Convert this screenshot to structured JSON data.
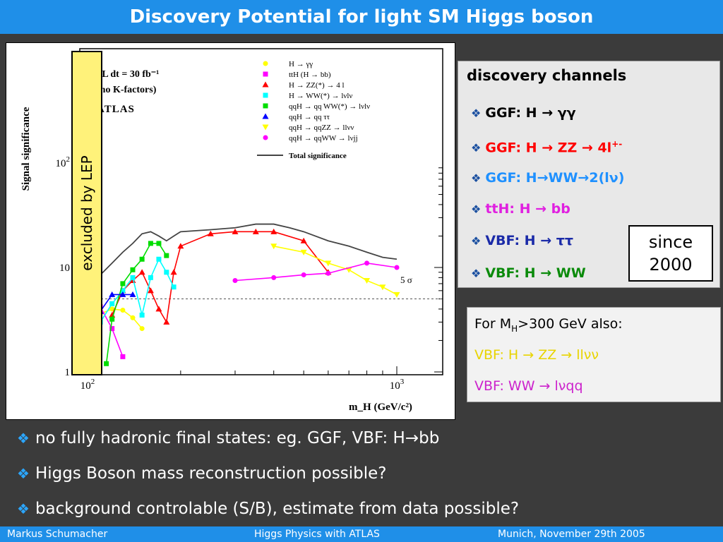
{
  "title": "Discovery Potential for light SM Higgs boson",
  "chart_data": {
    "type": "line",
    "title": "",
    "xlabel": "m_H (GeV/c²)",
    "ylabel": "Signal significance",
    "xscale": "log",
    "yscale": "log",
    "xlim": [
      100,
      1000
    ],
    "ylim": [
      1,
      100
    ],
    "x_tick_labels": [
      "10 2",
      "10 3"
    ],
    "y_tick_labels": [
      "1",
      "10",
      "10 2"
    ],
    "annotations": [
      "∫ L dt = 30 fb⁻¹",
      "(no K-factors)",
      "ATLAS",
      "5 σ"
    ],
    "threshold": {
      "label": "5 σ",
      "y": 5
    },
    "legend_position": "top-right",
    "series": [
      {
        "name": "H → γγ",
        "color": "#ffff00",
        "marker": "circle",
        "x": [
          100,
          110,
          120,
          130,
          140,
          150
        ],
        "y": [
          2.7,
          3.6,
          4.0,
          3.9,
          3.3,
          2.6
        ]
      },
      {
        "name": "ttH (H → bb)",
        "color": "#ff00ff",
        "marker": "square",
        "x": [
          100,
          110,
          120,
          130
        ],
        "y": [
          5.0,
          4.2,
          2.6,
          1.4
        ]
      },
      {
        "name": "H → ZZ(*) → 4 l",
        "color": "#ff0000",
        "marker": "triangle",
        "x": [
          120,
          130,
          140,
          150,
          160,
          170,
          180,
          190,
          200,
          250,
          300,
          350,
          400,
          500,
          600
        ],
        "y": [
          3.5,
          6.0,
          7.5,
          9.0,
          6.0,
          4.0,
          3.0,
          9.0,
          16.0,
          21.0,
          22.0,
          22.0,
          22.0,
          18.0,
          9.0
        ]
      },
      {
        "name": "H → WW(*) → lνlν",
        "color": "#00ffff",
        "marker": "square",
        "x": [
          110,
          120,
          130,
          140,
          150,
          160,
          170,
          180,
          190
        ],
        "y": [
          3.0,
          4.5,
          6.0,
          8.0,
          3.5,
          8.0,
          12.0,
          9.0,
          6.5
        ]
      },
      {
        "name": "qqH → qq WW(*) → lνlν",
        "color": "#00dd00",
        "marker": "square",
        "x": [
          115,
          120,
          130,
          140,
          150,
          160,
          170,
          180
        ],
        "y": [
          1.2,
          3.2,
          7.0,
          9.5,
          12.0,
          17.0,
          17.0,
          13.0
        ]
      },
      {
        "name": "qqH → qq ττ",
        "color": "#0000ff",
        "marker": "triangle",
        "x": [
          110,
          120,
          130,
          140
        ],
        "y": [
          3.8,
          5.5,
          5.5,
          5.5
        ]
      },
      {
        "name": "qqH → qqZZ → llνν",
        "color": "#ffff00",
        "marker": "triangle-down",
        "x": [
          400,
          500,
          600,
          700,
          800,
          900,
          1000
        ],
        "y": [
          16.0,
          14.0,
          11.0,
          9.5,
          7.5,
          6.5,
          5.5
        ]
      },
      {
        "name": "qqH → qqWW → lνjj",
        "color": "#ff00ff",
        "marker": "circle",
        "x": [
          300,
          400,
          500,
          600,
          800,
          1000
        ],
        "y": [
          7.5,
          8.0,
          8.5,
          8.8,
          11.0,
          10.0
        ]
      },
      {
        "name": "Total significance",
        "color": "#444444",
        "marker": "none",
        "x": [
          100,
          110,
          120,
          130,
          140,
          150,
          160,
          170,
          180,
          190,
          200,
          250,
          300,
          350,
          400,
          450,
          500,
          600,
          700,
          800,
          900,
          1000
        ],
        "y": [
          6.0,
          8.5,
          11.0,
          14.0,
          17.0,
          21.0,
          22.0,
          20.0,
          18.0,
          20.0,
          22.0,
          23.0,
          24.0,
          26.0,
          26.0,
          24.0,
          22.0,
          18.0,
          16.0,
          14.0,
          12.5,
          12.0
        ]
      }
    ]
  },
  "lep_label": "excluded by LEP",
  "channels": {
    "heading": "discovery channels",
    "items": [
      {
        "text": "GGF: H → γγ",
        "color": "#000000"
      },
      {
        "text": "GGF: H → ZZ → 4l",
        "sup": "+-",
        "color": "#ff0000"
      },
      {
        "text": "GGF: H→WW→2(lν)",
        "color": "#1e90ff"
      },
      {
        "text": "ttH:  H → bb",
        "color": "#e020e0"
      },
      {
        "text": "VBF: H → ττ",
        "color": "#1a2aa8"
      },
      {
        "text": "VBF: H → WW",
        "color": "#0a8a0a"
      }
    ]
  },
  "since": {
    "line1": "since",
    "line2": "2000"
  },
  "also": {
    "heading_pre": "For M",
    "heading_sub": "H",
    "heading_post": ">300 GeV also:",
    "line1": "VBF: H →  ZZ  → llνν",
    "line2": "VBF: WW → lνqq"
  },
  "bullets": [
    "no fully hadronic final states: eg. GGF, VBF: H→bb",
    "Higgs Boson mass reconstruction possible?",
    "background controlable (S/B), estimate from data possible?"
  ],
  "footer": {
    "author": "Markus  Schumacher",
    "talk": "Higgs Physics  with ATLAS",
    "place": "Munich, November 29th 2005"
  },
  "colors": {
    "title_bar": "#1f8fe8",
    "background": "#3b3b3b",
    "lep_band": "#fff27a"
  }
}
